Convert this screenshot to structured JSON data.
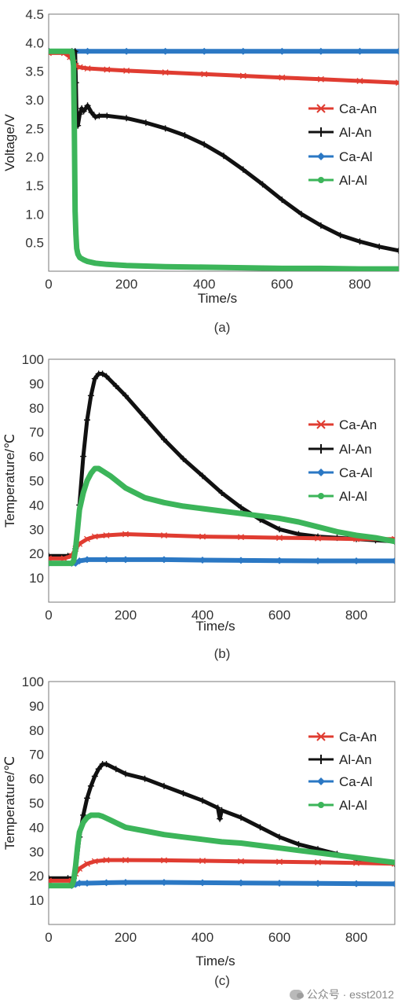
{
  "chart_data": [
    {
      "type": "line",
      "caption": "(a)",
      "xlabel": "Time/s",
      "ylabel": "Voltage/V",
      "xlim": [
        0,
        900
      ],
      "ylim": [
        0,
        4.5
      ],
      "xticks": [
        {
          "v": 0,
          "t": "0"
        },
        {
          "v": 200,
          "t": "200"
        },
        {
          "v": 400,
          "t": "400"
        },
        {
          "v": 600,
          "t": "600"
        },
        {
          "v": 800,
          "t": "800"
        }
      ],
      "yticks": [
        {
          "v": 0.5,
          "t": "0.5"
        },
        {
          "v": 1.0,
          "t": "1.0"
        },
        {
          "v": 1.5,
          "t": "1.5"
        },
        {
          "v": 2.0,
          "t": "2.0"
        },
        {
          "v": 2.5,
          "t": "2.5"
        },
        {
          "v": 3.0,
          "t": "3.0"
        },
        {
          "v": 3.5,
          "t": "3.5"
        },
        {
          "v": 4.0,
          "t": "4.0"
        },
        {
          "v": 4.5,
          "t": "4.5"
        }
      ],
      "legend_position": "right",
      "series": [
        {
          "name": "Ca-An",
          "color": "#e03c31",
          "marker": "x",
          "x": [
            0,
            40,
            55,
            65,
            70,
            80,
            100,
            150,
            200,
            300,
            400,
            500,
            600,
            700,
            800,
            900
          ],
          "y": [
            3.82,
            3.82,
            3.75,
            3.65,
            3.6,
            3.57,
            3.55,
            3.53,
            3.51,
            3.48,
            3.45,
            3.42,
            3.39,
            3.36,
            3.33,
            3.3
          ]
        },
        {
          "name": "Al-An",
          "color": "#111111",
          "marker": "+",
          "x": [
            0,
            60,
            68,
            70,
            72,
            75,
            80,
            85,
            90,
            100,
            110,
            120,
            130,
            150,
            200,
            250,
            300,
            350,
            400,
            450,
            500,
            550,
            600,
            650,
            700,
            750,
            800,
            850,
            900
          ],
          "y": [
            3.85,
            3.85,
            3.85,
            3.3,
            2.6,
            2.55,
            2.75,
            2.85,
            2.8,
            2.9,
            2.78,
            2.7,
            2.72,
            2.72,
            2.68,
            2.6,
            2.5,
            2.38,
            2.22,
            2.02,
            1.78,
            1.52,
            1.25,
            1.0,
            0.8,
            0.63,
            0.52,
            0.43,
            0.36
          ]
        },
        {
          "name": "Ca-Al",
          "color": "#2b78c4",
          "marker": "diamond",
          "x": [
            0,
            100,
            200,
            300,
            400,
            500,
            600,
            700,
            800,
            900
          ],
          "y": [
            3.85,
            3.85,
            3.85,
            3.85,
            3.85,
            3.85,
            3.85,
            3.85,
            3.85,
            3.85
          ]
        },
        {
          "name": "Al-Al",
          "color": "#3cb55a",
          "marker": "circle",
          "x": [
            0,
            60,
            64,
            66,
            68,
            70,
            72,
            75,
            80,
            90,
            100,
            120,
            150,
            200,
            300,
            400,
            500,
            600,
            700,
            800,
            900
          ],
          "y": [
            3.85,
            3.85,
            3.6,
            2.5,
            1.05,
            0.65,
            0.4,
            0.3,
            0.24,
            0.2,
            0.17,
            0.14,
            0.12,
            0.1,
            0.08,
            0.07,
            0.06,
            0.05,
            0.05,
            0.04,
            0.04
          ]
        }
      ]
    },
    {
      "type": "line",
      "caption": "(b)",
      "xlabel": "Time/s",
      "ylabel": "Temperature/℃",
      "xlim": [
        0,
        900
      ],
      "ylim": [
        0,
        100
      ],
      "xticks": [
        {
          "v": 0,
          "t": "0"
        },
        {
          "v": 200,
          "t": "200"
        },
        {
          "v": 400,
          "t": "400"
        },
        {
          "v": 600,
          "t": "600"
        },
        {
          "v": 800,
          "t": "800"
        }
      ],
      "yticks": [
        {
          "v": 10,
          "t": "10"
        },
        {
          "v": 20,
          "t": "20"
        },
        {
          "v": 30,
          "t": "30"
        },
        {
          "v": 40,
          "t": "40"
        },
        {
          "v": 50,
          "t": "50"
        },
        {
          "v": 60,
          "t": "60"
        },
        {
          "v": 70,
          "t": "70"
        },
        {
          "v": 80,
          "t": "80"
        },
        {
          "v": 90,
          "t": "90"
        },
        {
          "v": 100,
          "t": "100"
        }
      ],
      "legend_position": "right",
      "series": [
        {
          "name": "Ca-An",
          "color": "#e03c31",
          "marker": "x",
          "x": [
            0,
            40,
            60,
            70,
            80,
            100,
            120,
            150,
            200,
            300,
            400,
            500,
            600,
            700,
            800,
            900
          ],
          "y": [
            18,
            18,
            19,
            22,
            24,
            26,
            27,
            27.5,
            28,
            27.5,
            27,
            26.8,
            26.5,
            26.3,
            26,
            26
          ]
        },
        {
          "name": "Al-An",
          "color": "#111111",
          "marker": "+",
          "x": [
            0,
            50,
            65,
            70,
            80,
            90,
            100,
            110,
            120,
            130,
            140,
            150,
            175,
            200,
            250,
            300,
            350,
            400,
            450,
            500,
            550,
            600,
            650,
            700,
            750,
            800,
            850,
            900
          ],
          "y": [
            19,
            19,
            19.5,
            22,
            40,
            60,
            75,
            85,
            92,
            94,
            94,
            93,
            89,
            85,
            76,
            67,
            59,
            52,
            45,
            39,
            34,
            30,
            28,
            27,
            26.5,
            26,
            25.5,
            25
          ]
        },
        {
          "name": "Ca-Al",
          "color": "#2b78c4",
          "marker": "diamond",
          "x": [
            0,
            60,
            70,
            80,
            100,
            150,
            200,
            300,
            400,
            500,
            600,
            700,
            800,
            900
          ],
          "y": [
            16,
            16,
            16,
            17,
            17.5,
            17.5,
            17.5,
            17.5,
            17.3,
            17.2,
            17.1,
            17,
            17,
            17
          ]
        },
        {
          "name": "Al-Al",
          "color": "#3cb55a",
          "marker": "circle",
          "x": [
            0,
            60,
            65,
            70,
            75,
            80,
            90,
            100,
            110,
            120,
            130,
            140,
            160,
            180,
            200,
            250,
            300,
            350,
            400,
            450,
            500,
            550,
            600,
            650,
            700,
            750,
            800,
            850,
            900
          ],
          "y": [
            16,
            16,
            17,
            22,
            30,
            38,
            45,
            50,
            53,
            55,
            55,
            54,
            52,
            49.5,
            47,
            43,
            41,
            39.5,
            38.5,
            37.5,
            36.5,
            35.5,
            34.5,
            33,
            31,
            29,
            27.5,
            26.5,
            25
          ]
        }
      ]
    },
    {
      "type": "line",
      "caption": "(c)",
      "xlabel": "Time/s",
      "ylabel": "Temperature/℃",
      "xlim": [
        0,
        900
      ],
      "ylim": [
        0,
        100
      ],
      "xticks": [
        {
          "v": 0,
          "t": "0"
        },
        {
          "v": 200,
          "t": "200"
        },
        {
          "v": 400,
          "t": "400"
        },
        {
          "v": 600,
          "t": "600"
        },
        {
          "v": 800,
          "t": "800"
        }
      ],
      "yticks": [
        {
          "v": 10,
          "t": "10"
        },
        {
          "v": 20,
          "t": "20"
        },
        {
          "v": 30,
          "t": "30"
        },
        {
          "v": 40,
          "t": "40"
        },
        {
          "v": 50,
          "t": "50"
        },
        {
          "v": 60,
          "t": "60"
        },
        {
          "v": 70,
          "t": "70"
        },
        {
          "v": 80,
          "t": "80"
        },
        {
          "v": 90,
          "t": "90"
        },
        {
          "v": 100,
          "t": "100"
        }
      ],
      "legend_position": "right",
      "series": [
        {
          "name": "Ca-An",
          "color": "#e03c31",
          "marker": "x",
          "x": [
            0,
            60,
            70,
            80,
            100,
            120,
            150,
            200,
            300,
            400,
            500,
            600,
            700,
            800,
            900
          ],
          "y": [
            18,
            18,
            21,
            23,
            25,
            26,
            26.5,
            26.5,
            26.4,
            26.2,
            26,
            25.8,
            25.6,
            25.3,
            25
          ]
        },
        {
          "name": "Al-An",
          "color": "#111111",
          "marker": "+",
          "x": [
            0,
            50,
            65,
            70,
            80,
            90,
            100,
            110,
            120,
            130,
            140,
            150,
            175,
            200,
            250,
            300,
            350,
            400,
            440,
            445,
            450,
            500,
            550,
            600,
            650,
            700,
            750,
            800,
            850,
            900
          ],
          "y": [
            19,
            19,
            19,
            22,
            36,
            45,
            52,
            57,
            61,
            64,
            66,
            66,
            64,
            62,
            60,
            57,
            54,
            51,
            48,
            43.5,
            47,
            44,
            40,
            36,
            33,
            31,
            29,
            27,
            26,
            25
          ]
        },
        {
          "name": "Ca-Al",
          "color": "#2b78c4",
          "marker": "diamond",
          "x": [
            0,
            60,
            70,
            80,
            100,
            150,
            200,
            300,
            400,
            500,
            600,
            700,
            800,
            900
          ],
          "y": [
            16,
            16,
            16.5,
            17,
            17,
            17.2,
            17.3,
            17.3,
            17.2,
            17.1,
            17,
            16.9,
            16.8,
            16.7
          ]
        },
        {
          "name": "Al-Al",
          "color": "#3cb55a",
          "marker": "circle",
          "x": [
            0,
            60,
            65,
            70,
            75,
            80,
            90,
            100,
            110,
            120,
            130,
            140,
            160,
            180,
            200,
            250,
            300,
            350,
            400,
            450,
            500,
            550,
            600,
            650,
            700,
            750,
            800,
            850,
            900
          ],
          "y": [
            16,
            16,
            18,
            24,
            32,
            38,
            42,
            44,
            45,
            45,
            45,
            44.5,
            43,
            41.5,
            40,
            38.5,
            37,
            36,
            35,
            34,
            33.5,
            32.5,
            31.5,
            30.5,
            29.5,
            28.5,
            27.5,
            26.5,
            25.5
          ]
        }
      ]
    }
  ],
  "watermark": {
    "icon": "wechat-bubble-icon",
    "text": "公众号 · esst2012"
  }
}
